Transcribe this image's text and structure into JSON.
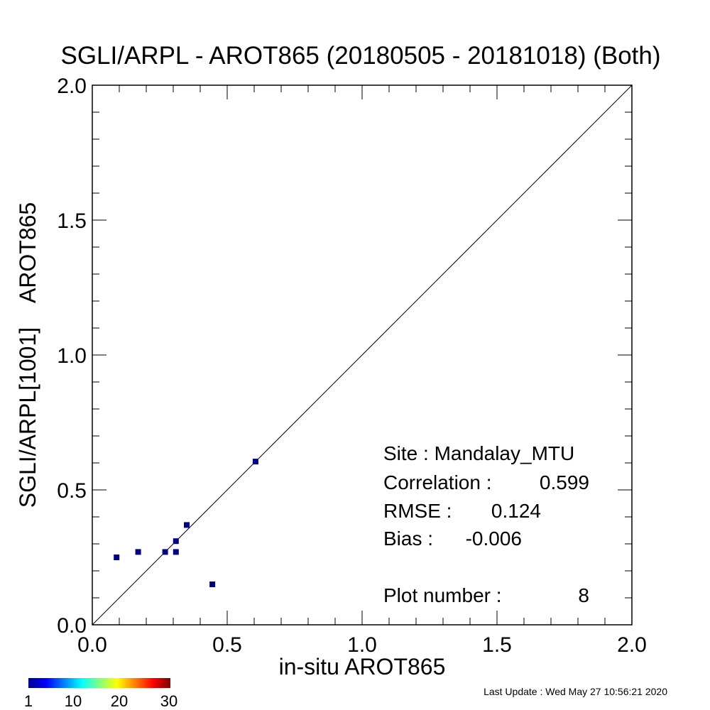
{
  "chart_data": {
    "type": "scatter",
    "title": "SGLI/ARPL - AROT865 (20180505 - 20181018) (Both)",
    "xlabel": "in-situ AROT865",
    "ylabel": "SGLI/ARPL[1001]    AROT865",
    "xlim": [
      0.0,
      2.0
    ],
    "ylim": [
      0.0,
      2.0
    ],
    "x_ticks": [
      "0.0",
      "0.5",
      "1.0",
      "1.5",
      "2.0"
    ],
    "y_ticks": [
      "0.0",
      "0.5",
      "1.0",
      "1.5",
      "2.0"
    ],
    "grid": false,
    "reference_line": "1:1 diagonal",
    "points": [
      {
        "x": 0.09,
        "y": 0.25
      },
      {
        "x": 0.17,
        "y": 0.27
      },
      {
        "x": 0.27,
        "y": 0.27
      },
      {
        "x": 0.31,
        "y": 0.27
      },
      {
        "x": 0.31,
        "y": 0.31
      },
      {
        "x": 0.35,
        "y": 0.37
      },
      {
        "x": 0.445,
        "y": 0.15
      },
      {
        "x": 0.605,
        "y": 0.605
      }
    ],
    "point_color": "#000080",
    "stats": {
      "site": "Site : Mandalay_MTU",
      "correlation_label": "Correlation :",
      "correlation_value": "0.599",
      "rmse_label": "RMSE :",
      "rmse_value": "0.124",
      "bias_label": "Bias :",
      "bias_value": "-0.006",
      "plot_number_label": "Plot number :",
      "plot_number_value": "8"
    },
    "colorbar": {
      "labels": [
        "1",
        "10",
        "20",
        "30"
      ],
      "colormap": "jet"
    }
  },
  "footer": {
    "last_update": "Last Update : Wed May 27 10:56:21 2020"
  }
}
